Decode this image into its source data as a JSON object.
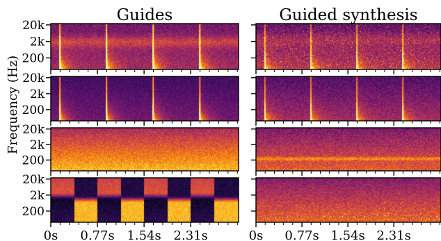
{
  "figure": {
    "column_titles": [
      "Guides",
      "Guided synthesis"
    ],
    "ylabel": "Frequency (Hz)"
  },
  "chart_data": {
    "type": "heatmap",
    "colormap": "inferno",
    "colormap_stops": [
      "#000004",
      "#1f0c48",
      "#550f6d",
      "#88226a",
      "#ba3655",
      "#e35933",
      "#f98e09",
      "#f8c931",
      "#fcffa4"
    ],
    "rows": 4,
    "columns": [
      "Guides",
      "Guided synthesis"
    ],
    "x_axis": {
      "label": "",
      "tick_labels": [
        "0s",
        "0.77s",
        "1.54s",
        "2.31s"
      ],
      "tick_values_s": [
        0,
        0.77,
        1.54,
        2.31
      ],
      "range_s": [
        0,
        3.1
      ],
      "minor_tick_step_s": 0.154
    },
    "y_axis": {
      "label": "Frequency (Hz)",
      "scale": "log",
      "tick_labels": [
        "20k",
        "2k",
        "200"
      ],
      "tick_values_hz": [
        20000,
        2000,
        200
      ],
      "range_hz": [
        40,
        24000
      ]
    },
    "panels": [
      {
        "row": 1,
        "column": "Guides",
        "pattern": "percussive onsets with background texture",
        "onset_times_s": [
          0.15,
          0.92,
          1.69,
          2.46
        ]
      },
      {
        "row": 1,
        "column": "Guided synthesis",
        "pattern": "synthesized onsets",
        "onset_times_s": [
          0.15,
          0.92,
          1.69,
          2.46
        ]
      },
      {
        "row": 2,
        "column": "Guides",
        "pattern": "isolated percussive onsets",
        "onset_times_s": [
          0.15,
          0.92,
          1.69,
          2.46
        ]
      },
      {
        "row": 2,
        "column": "Guided synthesis",
        "pattern": "synthesized onsets",
        "onset_times_s": [
          0.15,
          0.92,
          1.69,
          2.46
        ]
      },
      {
        "row": 3,
        "column": "Guides",
        "pattern": "stationary noise"
      },
      {
        "row": 3,
        "column": "Guided synthesis",
        "pattern": "stationary texture"
      },
      {
        "row": 4,
        "column": "Guides",
        "pattern": "alternating high / low frequency bands",
        "segment_boundaries_s": [
          0.385,
          0.77,
          1.155,
          1.54,
          1.925,
          2.31,
          2.695
        ]
      },
      {
        "row": 4,
        "column": "Guided synthesis",
        "pattern": "texture with faint onsets"
      }
    ]
  }
}
